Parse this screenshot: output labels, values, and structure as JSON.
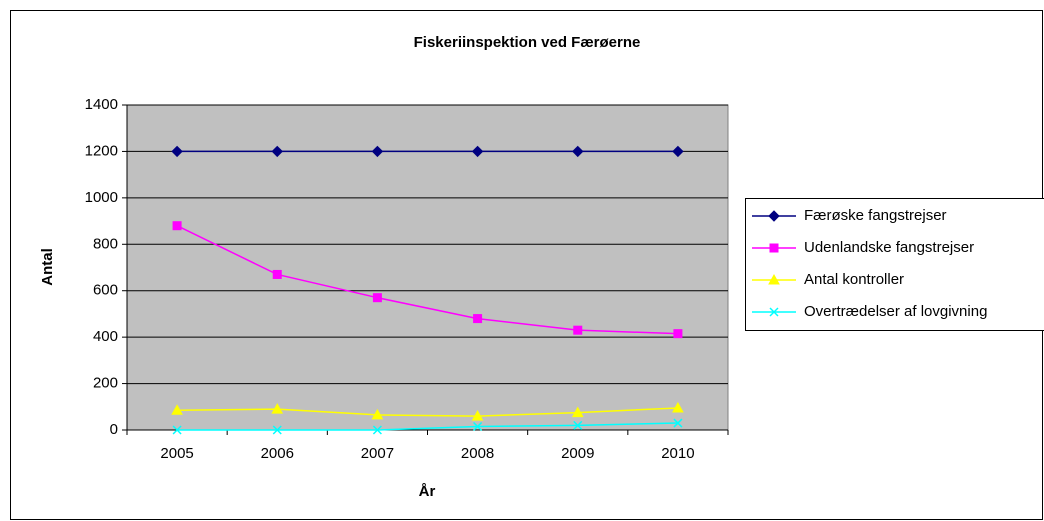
{
  "chart_data": {
    "type": "line",
    "title": "Fiskeriinspektion ved Færøerne",
    "x_label": "År",
    "y_label": "Antal",
    "categories": [
      "2005",
      "2006",
      "2007",
      "2008",
      "2009",
      "2010"
    ],
    "series": [
      {
        "name": "Færøske fangstrejser",
        "color": "#000080",
        "marker": "diamond",
        "values": [
          1200,
          1200,
          1200,
          1200,
          1200,
          1200
        ]
      },
      {
        "name": "Udenlandske fangstrejser",
        "color": "#FF00FF",
        "marker": "square",
        "values": [
          880,
          670,
          570,
          480,
          430,
          415
        ]
      },
      {
        "name": "Antal kontroller",
        "color": "#FFFF00",
        "marker": "triangle",
        "values": [
          85,
          90,
          65,
          60,
          75,
          95
        ]
      },
      {
        "name": "Overtrædelser af lovgivning",
        "color": "#00FFFF",
        "marker": "x",
        "values": [
          0,
          0,
          0,
          15,
          20,
          30
        ]
      }
    ],
    "ylim": [
      0,
      1400
    ],
    "yticks": [
      0,
      200,
      400,
      600,
      800,
      1000,
      1200,
      1400
    ],
    "grid": true,
    "legend": "right"
  }
}
